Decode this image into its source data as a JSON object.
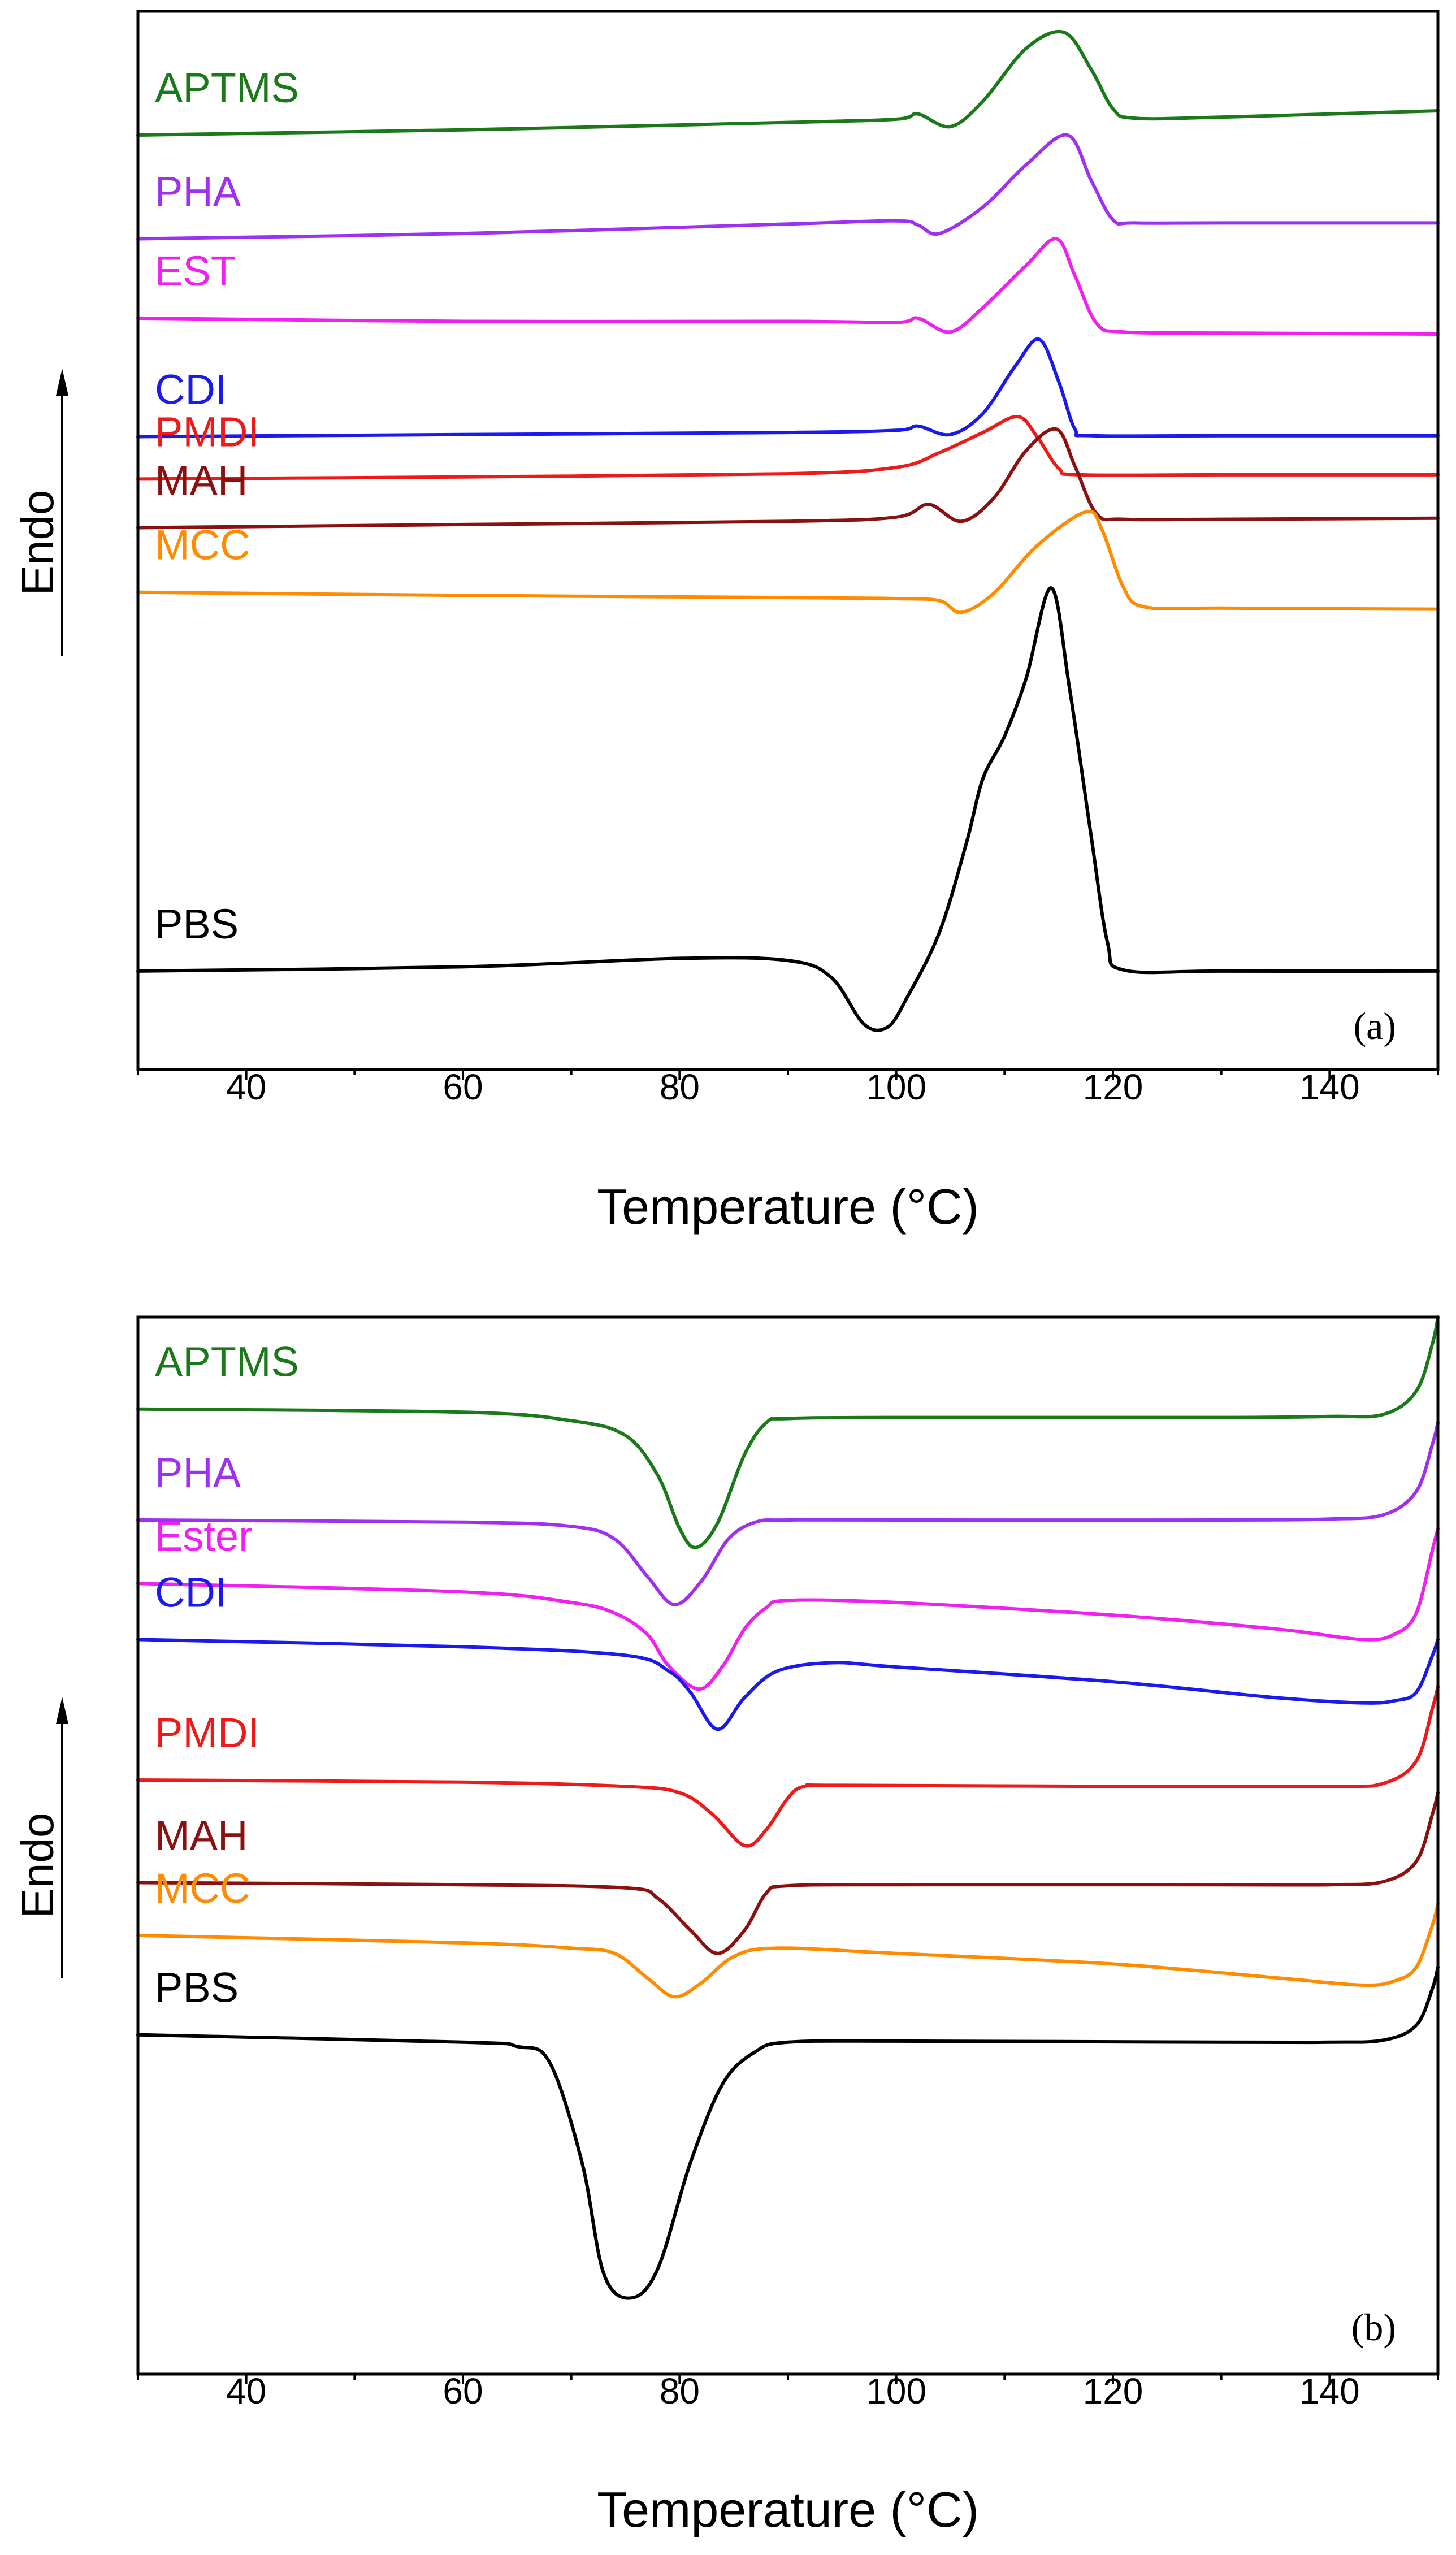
{
  "chart_data": [
    {
      "id": "a",
      "type": "line",
      "title": "",
      "panel_tag": "(a)",
      "xlabel": "Temperature (°C)",
      "ylabel": "Endo",
      "xlim": [
        30,
        150
      ],
      "ylim": [
        0,
        100
      ],
      "x_ticks": [
        40,
        60,
        80,
        100,
        120,
        140
      ],
      "grid": false,
      "series": [
        {
          "name": "APTMS",
          "color": "#1a7a1a",
          "x": [
            30,
            60,
            90,
            100,
            102,
            105,
            108,
            112,
            115.5,
            118,
            120,
            122,
            130,
            150
          ],
          "y": [
            88.3,
            88.8,
            89.5,
            89.8,
            90.3,
            89.1,
            91.5,
            96.5,
            98.0,
            94.5,
            90.8,
            89.9,
            90.0,
            90.6
          ]
        },
        {
          "name": "PHA",
          "color": "#a030f0",
          "x": [
            30,
            60,
            90,
            100,
            102,
            104,
            108,
            112,
            115.8,
            118,
            120,
            122,
            130,
            150
          ],
          "y": [
            78.5,
            79.0,
            79.9,
            80.2,
            79.8,
            79.0,
            81.5,
            85.5,
            88.3,
            84.0,
            80.3,
            80.0,
            80.0,
            80.0
          ]
        },
        {
          "name": "EST",
          "color": "#f020f0",
          "x": [
            30,
            60,
            90,
            100,
            102,
            105,
            108,
            112,
            114.8,
            116.5,
            118.5,
            121,
            130,
            150
          ],
          "y": [
            71.0,
            70.7,
            70.7,
            70.6,
            71.0,
            69.7,
            72.0,
            76.0,
            78.5,
            75.0,
            70.5,
            69.7,
            69.6,
            69.5
          ]
        },
        {
          "name": "CDI",
          "color": "#1a1aee",
          "x": [
            30,
            60,
            90,
            100,
            102,
            105,
            108,
            111,
            113.2,
            115,
            116.5,
            118,
            130,
            150
          ],
          "y": [
            59.8,
            60.0,
            60.2,
            60.4,
            60.8,
            60.0,
            62.0,
            66.5,
            69.0,
            65.0,
            60.5,
            59.9,
            59.9,
            59.9
          ]
        },
        {
          "name": "PMDI",
          "color": "#ee1a1a",
          "x": [
            30,
            60,
            90,
            100,
            104,
            108,
            111.2,
            113,
            115,
            117,
            130,
            150
          ],
          "y": [
            55.8,
            56.0,
            56.3,
            56.9,
            58.3,
            60.2,
            61.7,
            59.8,
            56.8,
            56.2,
            56.2,
            56.2
          ]
        },
        {
          "name": "MAH",
          "color": "#8b1010",
          "x": [
            30,
            60,
            90,
            100,
            103,
            106,
            109,
            112,
            114.8,
            116.5,
            118.5,
            121,
            130,
            150
          ],
          "y": [
            51.2,
            51.5,
            51.8,
            52.2,
            53.4,
            51.8,
            54.0,
            58.5,
            60.5,
            57.0,
            52.5,
            52.0,
            52.0,
            52.1
          ]
        },
        {
          "name": "MCC",
          "color": "#ff8c00",
          "x": [
            30,
            60,
            90,
            100,
            104,
            106,
            109,
            113,
            117.5,
            119,
            121,
            123,
            130,
            150
          ],
          "y": [
            45.1,
            44.8,
            44.6,
            44.5,
            44.3,
            43.2,
            45.0,
            49.5,
            52.7,
            51.0,
            45.5,
            43.7,
            43.6,
            43.5
          ]
        },
        {
          "name": "PBS",
          "color": "#000000",
          "x": [
            30,
            60,
            80,
            90,
            94,
            97,
            99.2,
            101,
            104,
            106.5,
            108,
            110,
            112,
            114.3,
            116,
            118,
            119.5,
            121,
            130,
            150
          ],
          "y": [
            9.3,
            9.7,
            10.5,
            10.3,
            8.7,
            4.3,
            4.0,
            6.8,
            13.0,
            21.5,
            27.5,
            31.5,
            37.0,
            45.5,
            36.0,
            22.0,
            12.0,
            9.4,
            9.3,
            9.3
          ]
        }
      ]
    },
    {
      "id": "b",
      "type": "line",
      "title": "",
      "panel_tag": "(b)",
      "xlabel": "Temperature (°C)",
      "ylabel": "Endo",
      "xlim": [
        30,
        150
      ],
      "ylim": [
        0,
        100
      ],
      "x_ticks": [
        40,
        60,
        80,
        100,
        120,
        140
      ],
      "grid": false,
      "series": [
        {
          "name": "APTMS",
          "color": "#1a7a1a",
          "x": [
            30,
            60,
            70,
            75,
            78,
            80,
            81.5,
            83.5,
            86,
            88,
            90,
            100,
            130,
            140,
            145,
            148,
            149.5,
            150
          ],
          "y": [
            91.3,
            91.0,
            90.2,
            88.8,
            85.0,
            80.0,
            78.2,
            80.5,
            87.0,
            90.0,
            90.4,
            90.5,
            90.5,
            90.6,
            90.8,
            93.0,
            97.5,
            100.0
          ]
        },
        {
          "name": "PHA",
          "color": "#a030f0",
          "x": [
            30,
            60,
            70,
            74,
            77,
            79.5,
            82,
            84.5,
            87,
            90,
            100,
            130,
            140,
            145,
            148,
            149.5,
            150
          ],
          "y": [
            80.8,
            80.6,
            80.2,
            79.0,
            75.5,
            72.8,
            75.0,
            79.0,
            80.6,
            80.8,
            80.8,
            80.8,
            80.9,
            81.3,
            83.5,
            88.0,
            90.0
          ]
        },
        {
          "name": "Ester",
          "color": "#f020f0",
          "x": [
            30,
            60,
            70,
            74,
            77,
            79,
            81.8,
            84,
            86,
            88,
            90,
            100,
            120,
            135,
            143,
            146,
            148,
            149.5,
            150
          ],
          "y": [
            74.8,
            74.0,
            73.0,
            72.0,
            70.0,
            67.0,
            64.8,
            67.0,
            70.5,
            72.5,
            73.2,
            73.0,
            71.8,
            70.5,
            69.5,
            70.0,
            72.0,
            78.0,
            80.0
          ]
        },
        {
          "name": "CDI",
          "color": "#1a1aee",
          "x": [
            30,
            60,
            75,
            79,
            81,
            83.5,
            86,
            89,
            94,
            100,
            120,
            135,
            143,
            146,
            148,
            149.5,
            150
          ],
          "y": [
            69.5,
            68.8,
            68.0,
            66.5,
            64.5,
            61.0,
            64.0,
            66.5,
            67.3,
            66.9,
            65.5,
            64.0,
            63.5,
            63.7,
            64.5,
            68.0,
            69.5
          ]
        },
        {
          "name": "PMDI",
          "color": "#ee1a1a",
          "x": [
            30,
            60,
            75,
            80,
            83,
            86,
            88,
            90,
            91.5,
            95,
            120,
            140,
            145,
            148,
            149.5,
            150
          ],
          "y": [
            56.2,
            56.0,
            55.6,
            55.0,
            53.0,
            50.0,
            51.5,
            54.5,
            55.6,
            55.7,
            55.6,
            55.6,
            55.9,
            58.0,
            63.0,
            65.0
          ]
        },
        {
          "name": "MAH",
          "color": "#8b1010",
          "x": [
            30,
            60,
            75,
            78,
            81,
            83.5,
            86,
            88,
            90,
            100,
            130,
            140,
            145,
            148,
            149.5,
            150
          ],
          "y": [
            46.5,
            46.3,
            46.0,
            45.0,
            42.0,
            39.8,
            42.0,
            45.5,
            46.2,
            46.3,
            46.3,
            46.3,
            46.6,
            48.5,
            53.0,
            55.0
          ]
        },
        {
          "name": "MCC",
          "color": "#ff8c00",
          "x": [
            30,
            60,
            70,
            74,
            77,
            79.5,
            82,
            85,
            89,
            100,
            120,
            135,
            143,
            146,
            148,
            149.5,
            150
          ],
          "y": [
            41.5,
            40.8,
            40.3,
            39.8,
            37.5,
            35.7,
            37.0,
            39.5,
            40.3,
            39.8,
            38.8,
            37.5,
            36.8,
            37.2,
            38.5,
            42.5,
            44.5
          ]
        },
        {
          "name": "PBS",
          "color": "#000000",
          "x": [
            30,
            60,
            65,
            68,
            71,
            73,
            75.5,
            78,
            81,
            84,
            87,
            90,
            100,
            130,
            140,
            145,
            148,
            149.5,
            150
          ],
          "y": [
            32.1,
            31.4,
            31.0,
            29.5,
            20.0,
            9.5,
            7.2,
            10.0,
            20.0,
            27.5,
            30.5,
            31.4,
            31.5,
            31.4,
            31.4,
            31.6,
            33.0,
            36.5,
            38.5
          ]
        }
      ]
    }
  ]
}
